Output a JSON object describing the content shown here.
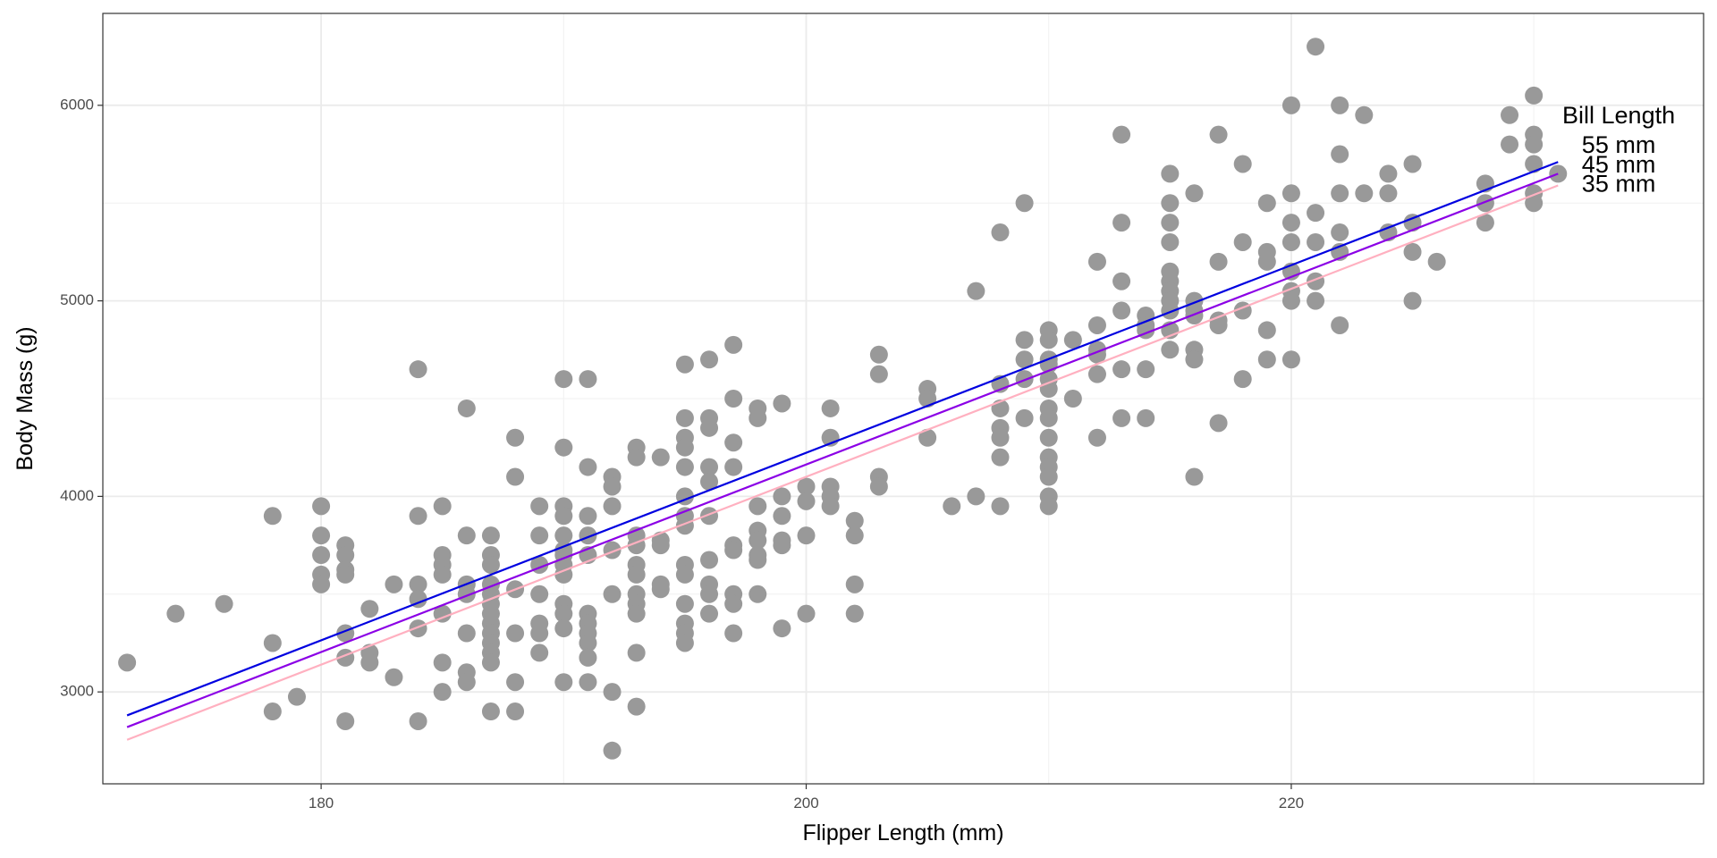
{
  "chart_data": {
    "type": "scatter",
    "title": "",
    "xlabel": "Flipper Length (mm)",
    "ylabel": "Body Mass (g)",
    "xlim": [
      171,
      237
    ],
    "ylim": [
      2530,
      6470
    ],
    "x_ticks": [
      180,
      200,
      220
    ],
    "x_tick_labels": [
      "180",
      "200",
      "220"
    ],
    "y_ticks": [
      3000,
      4000,
      5000,
      6000
    ],
    "y_tick_labels": [
      "3000",
      "4000",
      "5000",
      "6000"
    ],
    "grid": true,
    "legend": "none",
    "point_color": "#999999",
    "annotations": [
      {
        "text": "Bill Length",
        "x": 233.5,
        "y": 5940
      },
      {
        "text": "55 mm",
        "x": 233.5,
        "y": 5790
      },
      {
        "text": "45 mm",
        "x": 233.5,
        "y": 5690
      },
      {
        "text": "35 mm",
        "x": 233.5,
        "y": 5590
      }
    ],
    "lines": [
      {
        "label": "55 mm",
        "color": "#0000e0",
        "x": [
          172,
          231
        ],
        "y": [
          2880,
          5710
        ]
      },
      {
        "label": "45 mm",
        "color": "#8b00e6",
        "x": [
          172,
          231
        ],
        "y": [
          2820,
          5650
        ]
      },
      {
        "label": "35 mm",
        "color": "#ffb0c0",
        "x": [
          172,
          231
        ],
        "y": [
          2755,
          5590
        ]
      }
    ],
    "points": [
      [
        172,
        3150
      ],
      [
        174,
        3400
      ],
      [
        176,
        3450
      ],
      [
        178,
        3900
      ],
      [
        178,
        3250
      ],
      [
        178,
        2900
      ],
      [
        179,
        2975
      ],
      [
        180,
        3950
      ],
      [
        180,
        3800
      ],
      [
        180,
        3700
      ],
      [
        180,
        3600
      ],
      [
        180,
        3550
      ],
      [
        181,
        3750
      ],
      [
        181,
        3700
      ],
      [
        181,
        3625
      ],
      [
        181,
        3600
      ],
      [
        181,
        3300
      ],
      [
        181,
        3175
      ],
      [
        181,
        2850
      ],
      [
        182,
        3425
      ],
      [
        182,
        3200
      ],
      [
        182,
        3150
      ],
      [
        183,
        3550
      ],
      [
        183,
        3075
      ],
      [
        184,
        4650
      ],
      [
        184,
        3900
      ],
      [
        184,
        3550
      ],
      [
        184,
        3475
      ],
      [
        184,
        3325
      ],
      [
        184,
        2850
      ],
      [
        185,
        3950
      ],
      [
        185,
        3700
      ],
      [
        185,
        3650
      ],
      [
        185,
        3600
      ],
      [
        185,
        3400
      ],
      [
        185,
        3150
      ],
      [
        185,
        3000
      ],
      [
        186,
        4450
      ],
      [
        186,
        3800
      ],
      [
        186,
        3550
      ],
      [
        186,
        3500
      ],
      [
        186,
        3300
      ],
      [
        186,
        3100
      ],
      [
        186,
        3050
      ],
      [
        187,
        3800
      ],
      [
        187,
        3700
      ],
      [
        187,
        3650
      ],
      [
        187,
        3550
      ],
      [
        187,
        3500
      ],
      [
        187,
        3450
      ],
      [
        187,
        3400
      ],
      [
        187,
        3350
      ],
      [
        187,
        3300
      ],
      [
        187,
        3250
      ],
      [
        187,
        3200
      ],
      [
        187,
        3150
      ],
      [
        187,
        2900
      ],
      [
        188,
        4300
      ],
      [
        188,
        4100
      ],
      [
        188,
        3525
      ],
      [
        188,
        3300
      ],
      [
        188,
        3050
      ],
      [
        188,
        2900
      ],
      [
        189,
        3950
      ],
      [
        189,
        3800
      ],
      [
        189,
        3650
      ],
      [
        189,
        3500
      ],
      [
        189,
        3350
      ],
      [
        189,
        3300
      ],
      [
        189,
        3200
      ],
      [
        190,
        4600
      ],
      [
        190,
        4250
      ],
      [
        190,
        3950
      ],
      [
        190,
        3900
      ],
      [
        190,
        3800
      ],
      [
        190,
        3725
      ],
      [
        190,
        3700
      ],
      [
        190,
        3650
      ],
      [
        190,
        3600
      ],
      [
        190,
        3450
      ],
      [
        190,
        3400
      ],
      [
        190,
        3325
      ],
      [
        190,
        3050
      ],
      [
        191,
        4600
      ],
      [
        191,
        4150
      ],
      [
        191,
        3900
      ],
      [
        191,
        3800
      ],
      [
        191,
        3700
      ],
      [
        191,
        3400
      ],
      [
        191,
        3350
      ],
      [
        191,
        3300
      ],
      [
        191,
        3250
      ],
      [
        191,
        3175
      ],
      [
        191,
        3050
      ],
      [
        192,
        4100
      ],
      [
        192,
        4050
      ],
      [
        192,
        3950
      ],
      [
        192,
        3725
      ],
      [
        192,
        3500
      ],
      [
        192,
        3000
      ],
      [
        192,
        2700
      ],
      [
        193,
        4250
      ],
      [
        193,
        4200
      ],
      [
        193,
        3800
      ],
      [
        193,
        3750
      ],
      [
        193,
        3650
      ],
      [
        193,
        3600
      ],
      [
        193,
        3500
      ],
      [
        193,
        3450
      ],
      [
        193,
        3400
      ],
      [
        193,
        3200
      ],
      [
        193,
        2925
      ],
      [
        194,
        4200
      ],
      [
        194,
        3775
      ],
      [
        194,
        3750
      ],
      [
        194,
        3550
      ],
      [
        194,
        3525
      ],
      [
        195,
        4675
      ],
      [
        195,
        4400
      ],
      [
        195,
        4300
      ],
      [
        195,
        4250
      ],
      [
        195,
        4150
      ],
      [
        195,
        4000
      ],
      [
        195,
        3900
      ],
      [
        195,
        3850
      ],
      [
        195,
        3650
      ],
      [
        195,
        3600
      ],
      [
        195,
        3450
      ],
      [
        195,
        3350
      ],
      [
        195,
        3300
      ],
      [
        195,
        3250
      ],
      [
        196,
        4700
      ],
      [
        196,
        4400
      ],
      [
        196,
        4350
      ],
      [
        196,
        4150
      ],
      [
        196,
        4075
      ],
      [
        196,
        3900
      ],
      [
        196,
        3675
      ],
      [
        196,
        3550
      ],
      [
        196,
        3500
      ],
      [
        196,
        3400
      ],
      [
        197,
        4775
      ],
      [
        197,
        4500
      ],
      [
        197,
        4275
      ],
      [
        197,
        4150
      ],
      [
        197,
        3750
      ],
      [
        197,
        3725
      ],
      [
        197,
        3500
      ],
      [
        197,
        3450
      ],
      [
        197,
        3300
      ],
      [
        198,
        4450
      ],
      [
        198,
        4400
      ],
      [
        198,
        3950
      ],
      [
        198,
        3825
      ],
      [
        198,
        3775
      ],
      [
        198,
        3700
      ],
      [
        198,
        3675
      ],
      [
        198,
        3500
      ],
      [
        199,
        4475
      ],
      [
        199,
        4000
      ],
      [
        199,
        3900
      ],
      [
        199,
        3775
      ],
      [
        199,
        3750
      ],
      [
        199,
        3325
      ],
      [
        200,
        4050
      ],
      [
        200,
        3975
      ],
      [
        200,
        3800
      ],
      [
        200,
        3400
      ],
      [
        201,
        4450
      ],
      [
        201,
        4300
      ],
      [
        201,
        4050
      ],
      [
        201,
        4000
      ],
      [
        201,
        3950
      ],
      [
        202,
        3875
      ],
      [
        202,
        3800
      ],
      [
        202,
        3550
      ],
      [
        202,
        3400
      ],
      [
        203,
        4725
      ],
      [
        203,
        4625
      ],
      [
        203,
        4100
      ],
      [
        203,
        4050
      ],
      [
        205,
        4550
      ],
      [
        205,
        4500
      ],
      [
        205,
        4300
      ],
      [
        206,
        3950
      ],
      [
        207,
        5050
      ],
      [
        207,
        4000
      ],
      [
        208,
        5350
      ],
      [
        208,
        4575
      ],
      [
        208,
        4450
      ],
      [
        208,
        4350
      ],
      [
        208,
        4300
      ],
      [
        208,
        4200
      ],
      [
        208,
        3950
      ],
      [
        209,
        5500
      ],
      [
        209,
        4800
      ],
      [
        209,
        4700
      ],
      [
        209,
        4600
      ],
      [
        209,
        4400
      ],
      [
        210,
        4850
      ],
      [
        210,
        4800
      ],
      [
        210,
        4700
      ],
      [
        210,
        4675
      ],
      [
        210,
        4600
      ],
      [
        210,
        4550
      ],
      [
        210,
        4450
      ],
      [
        210,
        4400
      ],
      [
        210,
        4300
      ],
      [
        210,
        4200
      ],
      [
        210,
        4150
      ],
      [
        210,
        4100
      ],
      [
        210,
        4000
      ],
      [
        210,
        3950
      ],
      [
        211,
        4800
      ],
      [
        211,
        4500
      ],
      [
        212,
        5200
      ],
      [
        212,
        4875
      ],
      [
        212,
        4750
      ],
      [
        212,
        4725
      ],
      [
        212,
        4625
      ],
      [
        212,
        4300
      ],
      [
        213,
        5850
      ],
      [
        213,
        5400
      ],
      [
        213,
        5100
      ],
      [
        213,
        4950
      ],
      [
        213,
        4650
      ],
      [
        213,
        4400
      ],
      [
        214,
        4925
      ],
      [
        214,
        4875
      ],
      [
        214,
        4850
      ],
      [
        214,
        4650
      ],
      [
        214,
        4400
      ],
      [
        215,
        5650
      ],
      [
        215,
        5500
      ],
      [
        215,
        5400
      ],
      [
        215,
        5300
      ],
      [
        215,
        5150
      ],
      [
        215,
        5100
      ],
      [
        215,
        5050
      ],
      [
        215,
        5000
      ],
      [
        215,
        4950
      ],
      [
        215,
        4850
      ],
      [
        215,
        4750
      ],
      [
        216,
        5550
      ],
      [
        216,
        5000
      ],
      [
        216,
        4950
      ],
      [
        216,
        4925
      ],
      [
        216,
        4750
      ],
      [
        216,
        4700
      ],
      [
        216,
        4100
      ],
      [
        217,
        5850
      ],
      [
        217,
        5200
      ],
      [
        217,
        4900
      ],
      [
        217,
        4875
      ],
      [
        217,
        4375
      ],
      [
        218,
        5700
      ],
      [
        218,
        5300
      ],
      [
        218,
        4950
      ],
      [
        218,
        4600
      ],
      [
        219,
        5500
      ],
      [
        219,
        5250
      ],
      [
        219,
        5200
      ],
      [
        219,
        4850
      ],
      [
        219,
        4700
      ],
      [
        220,
        6000
      ],
      [
        220,
        5550
      ],
      [
        220,
        5400
      ],
      [
        220,
        5300
      ],
      [
        220,
        5150
      ],
      [
        220,
        5050
      ],
      [
        220,
        5000
      ],
      [
        220,
        4700
      ],
      [
        221,
        6300
      ],
      [
        221,
        5450
      ],
      [
        221,
        5300
      ],
      [
        221,
        5100
      ],
      [
        221,
        5000
      ],
      [
        222,
        6000
      ],
      [
        222,
        5750
      ],
      [
        222,
        5550
      ],
      [
        222,
        5350
      ],
      [
        222,
        5250
      ],
      [
        222,
        4875
      ],
      [
        223,
        5950
      ],
      [
        223,
        5550
      ],
      [
        224,
        5650
      ],
      [
        224,
        5550
      ],
      [
        224,
        5350
      ],
      [
        225,
        5700
      ],
      [
        225,
        5400
      ],
      [
        225,
        5250
      ],
      [
        225,
        5000
      ],
      [
        226,
        5200
      ],
      [
        228,
        5600
      ],
      [
        228,
        5500
      ],
      [
        228,
        5400
      ],
      [
        229,
        5950
      ],
      [
        229,
        5800
      ],
      [
        230,
        6050
      ],
      [
        230,
        5850
      ],
      [
        230,
        5800
      ],
      [
        230,
        5700
      ],
      [
        230,
        5550
      ],
      [
        230,
        5500
      ],
      [
        231,
        5650
      ]
    ]
  }
}
